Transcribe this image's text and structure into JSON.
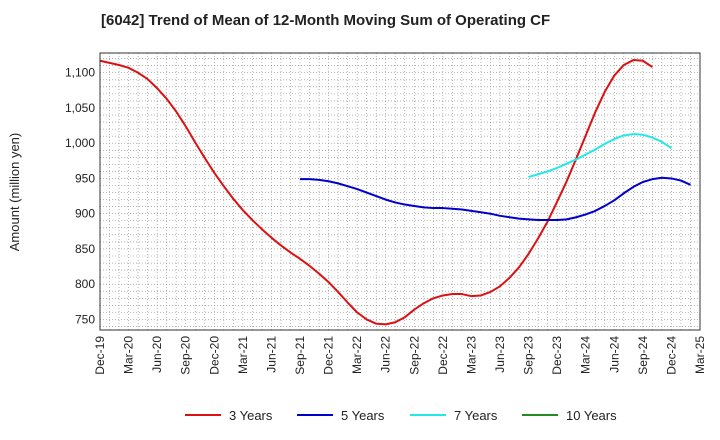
{
  "chart_data": {
    "type": "line",
    "title": "[6042]  Trend of Mean of 12-Month Moving Sum of Operating CF",
    "xlabel": "",
    "ylabel": "Amount (million yen)",
    "ylim": [
      735,
      1128
    ],
    "yticks": [
      750,
      800,
      850,
      900,
      950,
      1000,
      1050,
      1100
    ],
    "ytick_labels": [
      "750",
      "800",
      "850",
      "900",
      "950",
      "1,000",
      "1,050",
      "1,100"
    ],
    "xtick_labels": [
      "Dec-19",
      "Mar-20",
      "Jun-20",
      "Sep-20",
      "Dec-20",
      "Mar-21",
      "Jun-21",
      "Sep-21",
      "Dec-21",
      "Mar-22",
      "Jun-22",
      "Sep-22",
      "Dec-22",
      "Mar-23",
      "Jun-23",
      "Sep-23",
      "Dec-23",
      "Mar-24",
      "Jun-24",
      "Sep-24",
      "Dec-24",
      "Mar-25"
    ],
    "x_start_month_index": 0,
    "series": [
      {
        "name": "3 Years",
        "color": "#dd1111",
        "start": 0,
        "values": [
          1117,
          1114,
          1111,
          1107,
          1100,
          1091,
          1078,
          1063,
          1045,
          1024,
          1001,
          979,
          958,
          939,
          921,
          905,
          891,
          878,
          866,
          855,
          845,
          836,
          826,
          815,
          803,
          789,
          774,
          760,
          750,
          744,
          743,
          746,
          753,
          764,
          773,
          780,
          784,
          786,
          786,
          783,
          784,
          789,
          797,
          809,
          824,
          843,
          865,
          889,
          917,
          946,
          978,
          1011,
          1044,
          1073,
          1096,
          1111,
          1118,
          1117,
          1108
        ]
      },
      {
        "name": "5 Years",
        "color": "#0000cc",
        "start": 21,
        "values": [
          949,
          949,
          948,
          946,
          943,
          939,
          935,
          930,
          925,
          920,
          916,
          913,
          911,
          909,
          908,
          908,
          907,
          906,
          904,
          902,
          900,
          897,
          895,
          893,
          892,
          891,
          891,
          891,
          892,
          895,
          899,
          904,
          911,
          919,
          929,
          938,
          945,
          949,
          951,
          950,
          947,
          941
        ]
      },
      {
        "name": "7 Years",
        "color": "#22e8e8",
        "start": 45,
        "values": [
          952,
          956,
          960,
          965,
          971,
          977,
          984,
          991,
          999,
          1006,
          1011,
          1013,
          1012,
          1008,
          1002,
          993
        ]
      },
      {
        "name": "10 Years",
        "color": "#228b22",
        "start": 0,
        "values": []
      }
    ]
  }
}
